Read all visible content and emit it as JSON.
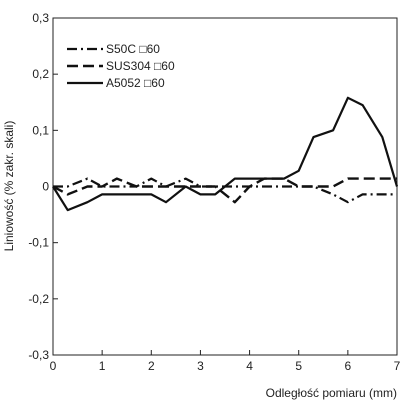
{
  "chart_data": {
    "type": "line",
    "xlabel": "Odległość pomiaru (mm)",
    "ylabel": "Liniowość (% zakr. skali)",
    "xlim": [
      0,
      7
    ],
    "ylim": [
      -0.3,
      0.3
    ],
    "x_ticks": [
      "0",
      "1",
      "2",
      "3",
      "4",
      "5",
      "6",
      "7"
    ],
    "y_ticks": [
      "-0,3",
      "-0,2",
      "-0,1",
      "0",
      "0,1",
      "0,2",
      "0,3"
    ],
    "grid": false,
    "legend_position": "top-left",
    "series": [
      {
        "name": "S50C □60",
        "style": "dash-dot",
        "x": [
          0,
          0.3,
          0.7,
          1.0,
          1.3,
          1.7,
          2.0,
          2.3,
          2.7,
          3.0,
          3.3,
          3.7,
          4.0,
          4.3,
          4.7,
          5.0,
          5.3,
          5.7,
          6.0,
          6.3,
          6.7,
          7.0
        ],
        "y": [
          0,
          0.0,
          0.014,
          0.0,
          0.0,
          0.0,
          0.014,
          0.0,
          0.014,
          0.0,
          0.0,
          0.0,
          0.0,
          0.0,
          0.0,
          0.0,
          0.0,
          -0.014,
          -0.028,
          -0.014,
          -0.014,
          -0.014
        ]
      },
      {
        "name": "SUS304 □60",
        "style": "dash",
        "x": [
          0,
          0.3,
          0.7,
          1.0,
          1.3,
          1.7,
          2.0,
          2.3,
          2.7,
          3.0,
          3.3,
          3.7,
          4.0,
          4.3,
          4.7,
          5.0,
          5.3,
          5.7,
          6.0,
          6.3,
          6.7,
          7.0
        ],
        "y": [
          0,
          -0.014,
          0.0,
          0.0,
          0.014,
          0.0,
          0.0,
          0.0,
          0.0,
          0.0,
          0.0,
          -0.028,
          0.0,
          0.014,
          0.014,
          0.0,
          0.0,
          0.0,
          0.014,
          0.014,
          0.014,
          0.014
        ]
      },
      {
        "name": "A5052 □60",
        "style": "solid",
        "x": [
          0,
          0.3,
          0.7,
          1.0,
          1.3,
          1.7,
          2.0,
          2.3,
          2.7,
          3.0,
          3.3,
          3.7,
          4.0,
          4.3,
          4.7,
          5.0,
          5.3,
          5.7,
          6.0,
          6.3,
          6.7,
          7.0
        ],
        "y": [
          0,
          -0.042,
          -0.028,
          -0.014,
          -0.014,
          -0.014,
          -0.014,
          -0.028,
          0.0,
          -0.014,
          -0.014,
          0.014,
          0.014,
          0.014,
          0.014,
          0.028,
          0.088,
          0.1,
          0.158,
          0.145,
          0.088,
          0.0
        ]
      }
    ]
  }
}
